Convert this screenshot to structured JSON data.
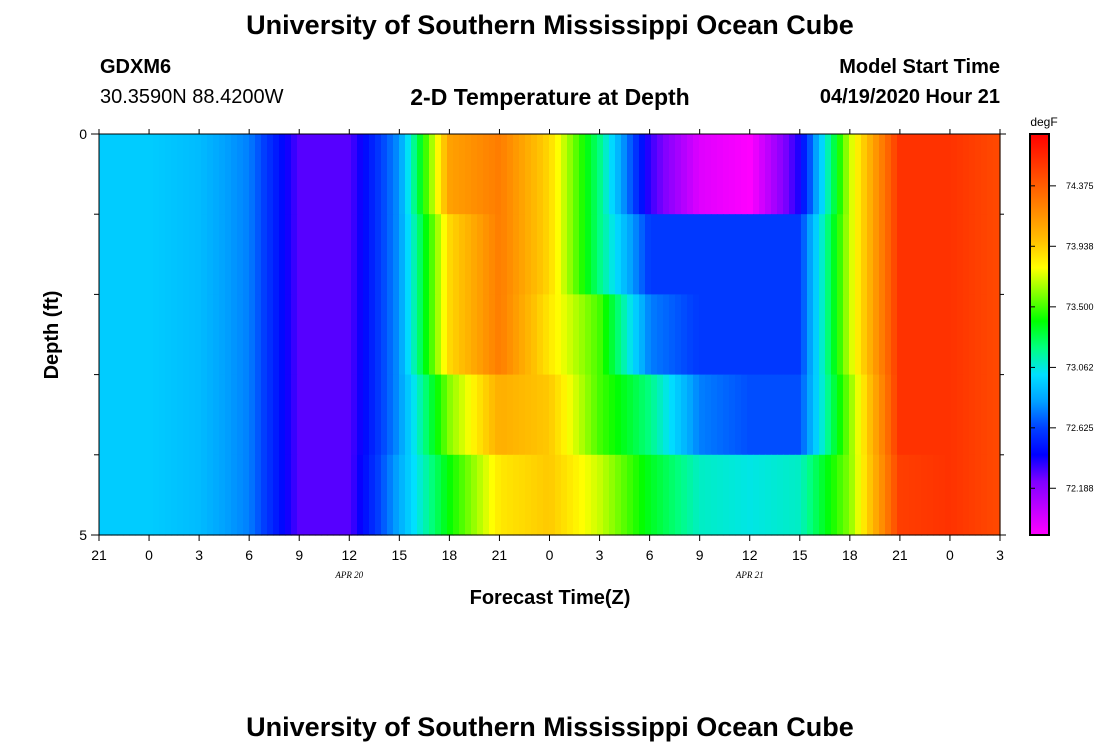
{
  "header": {
    "title": "University of Southern Mississippi Ocean Cube",
    "station": "GDXM6",
    "coords": "30.3590N 88.4200W",
    "subtitle": "2-D Temperature at Depth",
    "model_start_label": "Model Start Time",
    "model_start_value": "04/19/2020 Hour 21"
  },
  "footer": {
    "title": "University of Southern Mississippi Ocean Cube"
  },
  "chart_data": {
    "type": "heatmap",
    "xlabel": "Forecast Time(Z)",
    "ylabel": "Depth (ft)",
    "x_tick_labels": [
      "21",
      "0",
      "3",
      "6",
      "9",
      "12",
      "15",
      "18",
      "21",
      "0",
      "3",
      "6",
      "9",
      "12",
      "15",
      "18",
      "21",
      "0",
      "3"
    ],
    "x_date_labels": [
      {
        "label": "APR 20",
        "tick_index": 5
      },
      {
        "label": "APR 21",
        "tick_index": 13
      }
    ],
    "y_tick_labels": [
      {
        "label": "0",
        "depth": 0
      },
      {
        "label": "5",
        "depth": 5
      }
    ],
    "ylim": [
      0,
      5
    ],
    "y_minor_ticks": [
      1,
      2,
      3,
      4
    ],
    "colorbar": {
      "unit": "degF",
      "ticks": [
        "74.375",
        "73.938",
        "73.500",
        "73.062",
        "72.625",
        "72.188"
      ],
      "tick_values": [
        74.375,
        73.938,
        73.5,
        73.062,
        72.625,
        72.188
      ],
      "min": 71.85,
      "max": 74.75,
      "colors": [
        "#ff00ff",
        "#c000ff",
        "#8000ff",
        "#0000ff",
        "#0040ff",
        "#00a0ff",
        "#00e0ff",
        "#00ff80",
        "#00ff00",
        "#80ff00",
        "#ffff00",
        "#ffc000",
        "#ff9000",
        "#ff6000",
        "#ff3000",
        "#ff0000"
      ]
    },
    "x_hours": [
      0,
      3,
      6,
      9,
      12,
      15,
      18,
      21,
      24,
      27,
      30,
      33,
      36,
      39,
      42,
      45,
      48,
      51,
      54
    ],
    "depth_rows": [
      0,
      1,
      2,
      3,
      4
    ],
    "layers": [
      {
        "depth": 0,
        "temps": [
          72.95,
          72.95,
          72.9,
          72.75,
          72.3,
          72.3,
          72.8,
          74.1,
          74.25,
          73.9,
          73.2,
          72.35,
          71.95,
          71.85,
          72.4,
          73.7,
          74.55,
          74.55,
          74.45
        ]
      },
      {
        "depth": 1,
        "temps": [
          72.95,
          72.95,
          72.9,
          72.75,
          72.3,
          72.3,
          72.8,
          73.9,
          74.25,
          73.9,
          73.2,
          72.6,
          72.6,
          72.6,
          72.6,
          73.7,
          74.55,
          74.55,
          74.45
        ]
      },
      {
        "depth": 2,
        "temps": [
          72.95,
          72.95,
          72.9,
          72.75,
          72.3,
          72.3,
          72.8,
          73.9,
          74.25,
          73.85,
          73.5,
          72.75,
          72.6,
          72.6,
          72.6,
          73.7,
          74.55,
          74.55,
          74.45
        ]
      },
      {
        "depth": 3,
        "temps": [
          72.95,
          72.95,
          72.9,
          72.75,
          72.3,
          72.3,
          72.8,
          73.6,
          74.05,
          73.95,
          73.5,
          73.2,
          72.75,
          72.65,
          72.65,
          73.6,
          74.55,
          74.55,
          74.45
        ]
      },
      {
        "depth": 4,
        "temps": [
          72.95,
          72.95,
          72.9,
          72.75,
          72.3,
          72.3,
          72.85,
          73.4,
          73.85,
          73.95,
          73.7,
          73.35,
          73.1,
          73.05,
          73.1,
          73.6,
          74.5,
          74.55,
          74.45
        ]
      }
    ]
  }
}
